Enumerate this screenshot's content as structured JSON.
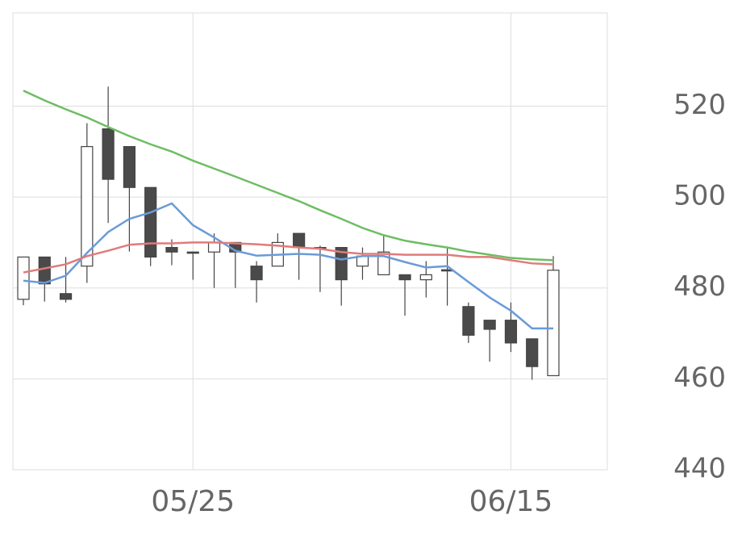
{
  "chart_data": {
    "type": "candlestick",
    "categories": [
      null,
      null,
      null,
      null,
      null,
      null,
      null,
      null,
      "05/25",
      null,
      null,
      null,
      null,
      null,
      null,
      null,
      null,
      null,
      null,
      null,
      null,
      null,
      null,
      "06/15",
      null,
      null
    ],
    "open": [
      477.5,
      486.8,
      478.75,
      484.8,
      515,
      511.1,
      502.1,
      488.9,
      487.9,
      487.9,
      490,
      484.8,
      484.8,
      492,
      488.9,
      488.9,
      484.8,
      482.9,
      482.9,
      481.8,
      484,
      475.9,
      472.9,
      472.9,
      468.8,
      460.7
    ],
    "high": [
      486.8,
      486.8,
      486.8,
      516.25,
      524.3,
      511.1,
      502.1,
      490.7,
      488,
      492,
      490,
      485.9,
      492,
      492,
      489.3,
      488.9,
      488.9,
      491.6,
      482.9,
      485.9,
      488.9,
      476.8,
      472.9,
      476.8,
      468.8,
      487
    ],
    "low": [
      476.2,
      477,
      476.8,
      481.1,
      494.3,
      488,
      484.8,
      485,
      481.8,
      480,
      480,
      476.8,
      484.8,
      481.8,
      479.1,
      476.1,
      481.8,
      482.9,
      473.9,
      477.9,
      476.1,
      467.9,
      463.8,
      465.9,
      459.8,
      460.7
    ],
    "close": [
      486.8,
      480.9,
      477.5,
      511.1,
      503.9,
      502.1,
      486.8,
      487.9,
      487.7,
      490,
      487.9,
      481.8,
      490,
      488.9,
      488.7,
      481.8,
      487,
      487.9,
      481.8,
      482.9,
      483.9,
      469.6,
      470.9,
      467.9,
      462.7,
      483.9
    ],
    "up_color": "#ffffff",
    "down_color": "#4a4a4a",
    "edge_color": "#444444",
    "lines": [
      {
        "color": "#6a9bd8",
        "values": [
          481.6,
          481.1,
          482.7,
          487.7,
          492.3,
          495.2,
          496.6,
          498.6,
          493.8,
          491.1,
          488.2,
          487.1,
          487.3,
          487.5,
          487.3,
          486.25,
          487,
          487,
          485.7,
          484.5,
          484.8,
          481.3,
          477.9,
          475,
          471.1,
          471.1
        ]
      },
      {
        "color": "#e07b7b",
        "values": [
          483.4,
          484.3,
          485.2,
          487,
          488.2,
          489.5,
          489.8,
          489.8,
          490,
          490,
          489.8,
          489.6,
          489.3,
          488.9,
          488.6,
          487.9,
          487.5,
          487.5,
          487.3,
          487.3,
          487.3,
          486.8,
          486.8,
          486.1,
          485.4,
          485.2
        ]
      },
      {
        "color": "#6dbd63",
        "values": [
          523.4,
          521.25,
          519.3,
          517.5,
          515.4,
          513.4,
          511.6,
          510,
          508,
          506.25,
          504.5,
          502.7,
          500.9,
          499.1,
          497.1,
          495.2,
          493.2,
          491.6,
          490.4,
          489.6,
          488.9,
          488,
          487.3,
          486.6,
          486.3,
          486.1
        ]
      }
    ],
    "ylim": [
      440,
      540.5
    ],
    "yticks": [
      440,
      460,
      480,
      500,
      520
    ],
    "grid": true
  }
}
